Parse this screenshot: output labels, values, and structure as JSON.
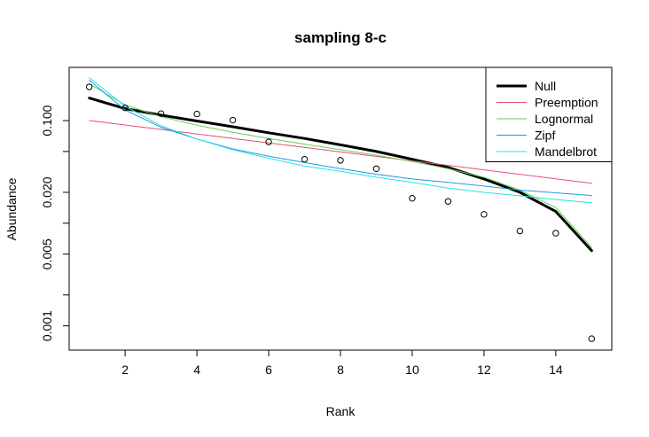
{
  "chart_data": {
    "type": "line",
    "title": "sampling 8-c",
    "xlabel": "Rank",
    "ylabel": "Abundance",
    "x_scale": "linear",
    "y_scale": "log",
    "xlim": [
      0.44,
      15.56
    ],
    "ylim": [
      0.00058,
      0.33
    ],
    "x_ticks": [
      2,
      4,
      6,
      8,
      10,
      12,
      14
    ],
    "x_tick_labels": [
      "2",
      "4",
      "6",
      "8",
      "10",
      "12",
      "14"
    ],
    "y_ticks": [
      0.001,
      0.005,
      0.02,
      0.1
    ],
    "y_tick_labels": [
      "0.001",
      "0.005",
      "0.020",
      "0.100"
    ],
    "y_minor_ticks": [
      0.002,
      0.01,
      0.05
    ],
    "legend_position": "top-right",
    "observed": {
      "x": [
        1,
        2,
        3,
        4,
        5,
        6,
        7,
        8,
        9,
        10,
        11,
        12,
        13,
        14,
        15
      ],
      "y": [
        0.213,
        0.133,
        0.117,
        0.116,
        0.101,
        0.062,
        0.042,
        0.041,
        0.034,
        0.0175,
        0.0163,
        0.0122,
        0.0084,
        0.008,
        0.00075
      ]
    },
    "series": [
      {
        "name": "Null",
        "color": "#000000",
        "width": 3,
        "x": [
          1,
          2,
          3,
          4,
          5,
          6,
          7,
          8,
          9,
          10,
          11,
          12,
          13,
          14,
          15
        ],
        "y": [
          0.166,
          0.131,
          0.113,
          0.099,
          0.087,
          0.076,
          0.067,
          0.058,
          0.05,
          0.042,
          0.035,
          0.027,
          0.02,
          0.013,
          0.0054
        ]
      },
      {
        "name": "Preemption",
        "color": "#DF536B",
        "width": 1,
        "x": [
          1,
          15
        ],
        "y": [
          0.1,
          0.0245
        ]
      },
      {
        "name": "Lognormal",
        "color": "#61D04F",
        "width": 1,
        "x": [
          1,
          2,
          3,
          4,
          5,
          6,
          7,
          8,
          9,
          10,
          11,
          12,
          13,
          14,
          15
        ],
        "y": [
          0.228,
          0.142,
          0.109,
          0.09,
          0.077,
          0.067,
          0.059,
          0.052,
          0.046,
          0.04,
          0.034,
          0.028,
          0.021,
          0.0142,
          0.0058
        ]
      },
      {
        "name": "Zipf",
        "color": "#2297E6",
        "width": 1,
        "x": [
          1,
          2,
          3,
          4,
          5,
          6,
          7,
          8,
          9,
          10,
          11,
          12,
          13,
          14,
          15
        ],
        "y": [
          0.248,
          0.127,
          0.086,
          0.066,
          0.053,
          0.045,
          0.039,
          0.034,
          0.03,
          0.027,
          0.025,
          0.023,
          0.021,
          0.0198,
          0.0186
        ]
      },
      {
        "name": "Mandelbrot",
        "color": "#28E2E5",
        "width": 1,
        "x": [
          1,
          2,
          3,
          4,
          5,
          6,
          7,
          8,
          9,
          10,
          11,
          12,
          13,
          14,
          15
        ],
        "y": [
          0.262,
          0.138,
          0.089,
          0.066,
          0.052,
          0.043,
          0.036,
          0.032,
          0.028,
          0.025,
          0.022,
          0.02,
          0.0185,
          0.017,
          0.0158
        ]
      }
    ]
  }
}
